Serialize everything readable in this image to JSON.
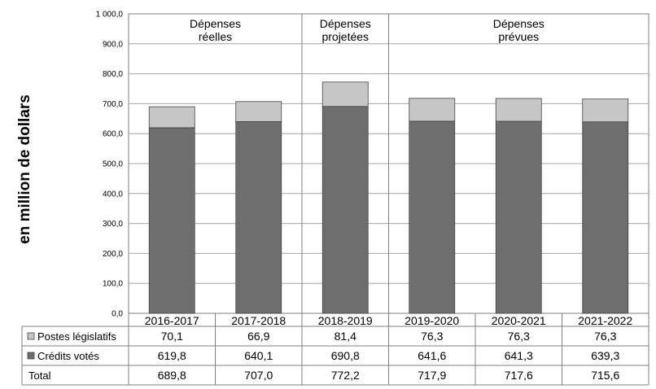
{
  "chart_data": {
    "type": "bar",
    "stacked": true,
    "ylabel": "en million de dollars",
    "categories": [
      "2016-2017",
      "2017-2018",
      "2018-2019",
      "2019-2020",
      "2020-2021",
      "2021-2022"
    ],
    "ylim": [
      0,
      1000
    ],
    "yticks": [
      "0,0",
      "100,0",
      "200,0",
      "300,0",
      "400,0",
      "500,0",
      "600,0",
      "700,0",
      "800,0",
      "900,0",
      "1 000,0"
    ],
    "grid": true,
    "series": [
      {
        "name": "Crédits votés",
        "values": [
          619.8,
          640.1,
          690.8,
          641.6,
          641.3,
          639.3
        ],
        "labels": [
          "619,8",
          "640,1",
          "690,8",
          "641,6",
          "641,3",
          "639,3"
        ],
        "color": "#6e6e6e"
      },
      {
        "name": "Postes législatifs",
        "values": [
          70.1,
          66.9,
          81.4,
          76.3,
          76.3,
          76.3
        ],
        "labels": [
          "70,1",
          "66,9",
          "81,4",
          "76,3",
          "76,3",
          "76,3"
        ],
        "color": "#c6c6c6"
      }
    ],
    "totals": {
      "name": "Total",
      "values": [
        689.8,
        707.0,
        772.2,
        717.9,
        717.6,
        715.6
      ],
      "labels": [
        "689,8",
        "707,0",
        "772,2",
        "717,9",
        "717,6",
        "715,6"
      ]
    },
    "sections": [
      {
        "lines": [
          "Dépenses",
          "réelles"
        ],
        "from": 0,
        "to": 1
      },
      {
        "lines": [
          "Dépenses",
          "projetées"
        ],
        "from": 2,
        "to": 2
      },
      {
        "lines": [
          "Dépenses",
          "prévues"
        ],
        "from": 3,
        "to": 5
      }
    ]
  }
}
